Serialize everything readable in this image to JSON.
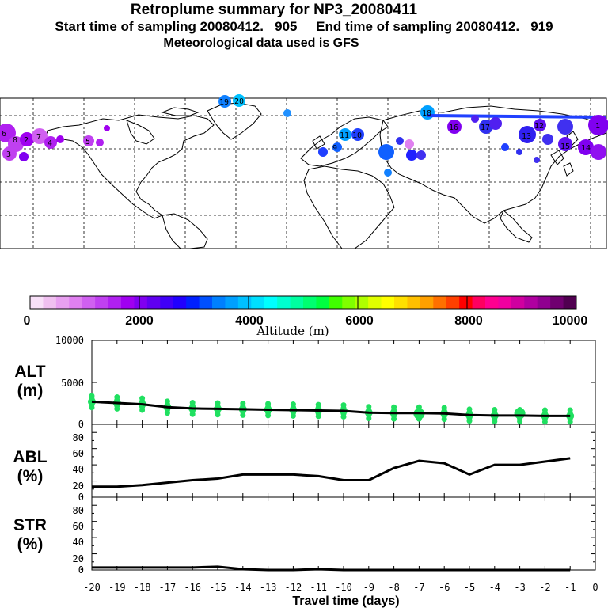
{
  "header": {
    "title": "Retroplume summary for NP3_20080411",
    "subtitle": "Start time of sampling 20080412.   905     End time of sampling 20080412.   919",
    "met": "Meteorological data used is GFS"
  },
  "colorbar": {
    "label": "Altitude (m)",
    "ticks": [
      "0",
      "2000",
      "4000",
      "6000",
      "8000",
      "10000"
    ],
    "range": [
      0,
      10000
    ],
    "colors": [
      "#f8e0f8",
      "#f0c0f0",
      "#e8a0f0",
      "#e080f0",
      "#d060f0",
      "#c040f0",
      "#b020f0",
      "#a000f0",
      "#8000f0",
      "#6000f0",
      "#4000f8",
      "#2000ff",
      "#0020ff",
      "#0050ff",
      "#0080ff",
      "#00a0ff",
      "#00c0ff",
      "#00e0ff",
      "#00ffff",
      "#00ffd0",
      "#00ffa0",
      "#00ff70",
      "#00ff40",
      "#40ff00",
      "#80ff00",
      "#b0ff00",
      "#e0ff00",
      "#ffff00",
      "#ffe000",
      "#ffc000",
      "#ffa000",
      "#ff7000",
      "#ff4000",
      "#ff0000",
      "#ff0060",
      "#ff0090",
      "#f000a0",
      "#d000a0",
      "#b000a0",
      "#900090",
      "#700070",
      "#500050"
    ]
  },
  "map": {
    "markers": [
      {
        "label": "19",
        "color": "#1080ff"
      },
      {
        "label": "20",
        "color": "#00c0ff"
      },
      {
        "label": "18",
        "color": "#00a0ff"
      },
      {
        "label": "16",
        "color": "#5020f0"
      },
      {
        "label": "15",
        "color": "#8000f0"
      },
      {
        "label": "17",
        "color": "#2040ff"
      },
      {
        "label": "12",
        "color": "#4030f0"
      },
      {
        "label": "13",
        "color": "#3030f0"
      },
      {
        "label": "14",
        "color": "#6010f0"
      },
      {
        "label": "10",
        "color": "#2040ff"
      },
      {
        "label": "11",
        "color": "#00a0ff"
      },
      {
        "label": "9",
        "color": "#1060ff"
      },
      {
        "label": "8",
        "color": "#a000f0"
      },
      {
        "label": "7",
        "color": "#b020f0"
      },
      {
        "label": "6",
        "color": "#c040f0"
      },
      {
        "label": "5",
        "color": "#b020f0"
      },
      {
        "label": "4",
        "color": "#c040f0"
      },
      {
        "label": "3",
        "color": "#d060f0"
      },
      {
        "label": "2",
        "color": "#b020f0"
      },
      {
        "label": "1",
        "color": "#a000f0"
      }
    ]
  },
  "chart_data": [
    {
      "type": "scatter+line",
      "panel": "ALT",
      "ylabel": "ALT (m)",
      "ylim": [
        0,
        10000
      ],
      "yticks": [
        "10000",
        "5000",
        "0"
      ],
      "x": [
        -20,
        -19,
        -18,
        -17,
        -16,
        -15,
        -14,
        -13,
        -12,
        -11,
        -10,
        -9,
        -8,
        -7,
        -6,
        -5,
        -4,
        -3,
        -2,
        -1
      ],
      "median": [
        2700,
        2550,
        2400,
        2050,
        1900,
        1850,
        1800,
        1750,
        1700,
        1650,
        1600,
        1400,
        1350,
        1350,
        1300,
        1100,
        1050,
        1050,
        1000,
        1000
      ],
      "scatter_color": "#20e060"
    },
    {
      "type": "line",
      "panel": "ABL",
      "ylabel": "ABL (%)",
      "ylim": [
        0,
        90
      ],
      "yticks": [
        "80",
        "60",
        "40",
        "20",
        "0"
      ],
      "x": [
        -20,
        -19,
        -18,
        -17,
        -16,
        -15,
        -14,
        -13,
        -12,
        -11,
        -10,
        -9,
        -8,
        -7,
        -6,
        -5,
        -4,
        -3,
        -2,
        -1
      ],
      "values": [
        13,
        13,
        15,
        18,
        21,
        23,
        28,
        28,
        28,
        26,
        21,
        21,
        36,
        45,
        42,
        28,
        40,
        40,
        44,
        48
      ]
    },
    {
      "type": "line",
      "panel": "STR",
      "ylabel": "STR (%)",
      "ylim": [
        0,
        90
      ],
      "yticks": [
        "80",
        "60",
        "40",
        "20",
        "0"
      ],
      "x": [
        -20,
        -19,
        -18,
        -17,
        -16,
        -15,
        -14,
        -13,
        -12,
        -11,
        -10,
        -9,
        -8,
        -7,
        -6,
        -5,
        -4,
        -3,
        -2,
        -1
      ],
      "values": [
        3,
        3,
        3,
        3,
        3,
        4,
        1,
        0,
        0,
        1,
        0,
        0,
        0,
        0,
        0,
        0,
        0,
        0,
        0,
        0
      ]
    }
  ],
  "xaxis": {
    "label": "Travel time (days)",
    "ticks": [
      "-20",
      "-19",
      "-18",
      "-17",
      "-16",
      "-15",
      "-14",
      "-13",
      "-12",
      "-11",
      "-10",
      "-9",
      "-8",
      "-7",
      "-6",
      "-5",
      "-4",
      "-3",
      "-2",
      "-1",
      "0"
    ]
  },
  "panel_labels": {
    "alt": [
      "ALT",
      "(m)"
    ],
    "abl": [
      "ABL",
      "(%)"
    ],
    "str": [
      "STR",
      "(%)"
    ]
  }
}
